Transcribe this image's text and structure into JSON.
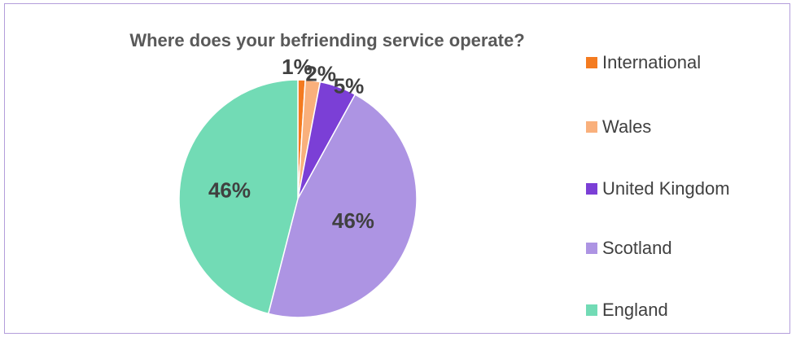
{
  "chart_data": {
    "type": "pie",
    "title": "Where does your befriending service operate?",
    "start_angle_deg": 0,
    "direction": "clockwise",
    "categories": [
      "International",
      "Wales",
      "United Kingdom",
      "Scotland",
      "England"
    ],
    "values": [
      1,
      2,
      5,
      46,
      46
    ],
    "data_labels": [
      "1%",
      "2%",
      "5%",
      "46%",
      "46%"
    ],
    "colors": [
      "#f47b20",
      "#f9b07c",
      "#7b3fd6",
      "#ad94e3",
      "#72dbb5"
    ],
    "legend": {
      "position": "right",
      "entries": [
        "International",
        "Wales",
        "United Kingdom",
        "Scotland",
        "England"
      ]
    }
  }
}
